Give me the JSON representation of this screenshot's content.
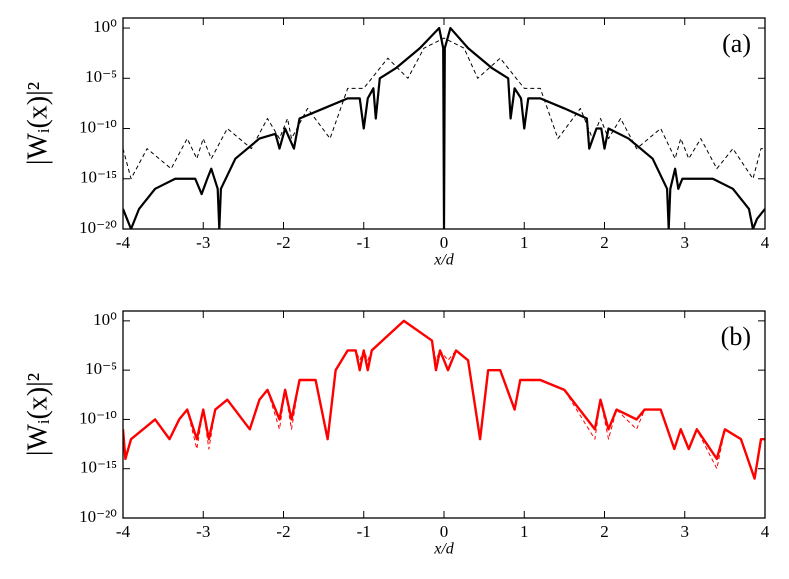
{
  "chart_data": [
    {
      "type": "line",
      "annotation": "(a)",
      "xlabel": "x/d",
      "ylabel": "|Wᵢ(x)|²",
      "ylog": true,
      "xlim": [
        -4,
        4
      ],
      "xticks": [
        -4,
        -3,
        -2,
        -1,
        0,
        1,
        2,
        3,
        4
      ],
      "ylim": [
        1e-20,
        10
      ],
      "yticks": [
        {
          "value": 1e-20,
          "label": "10⁻²⁰"
        },
        {
          "value": 1e-15,
          "label": "10⁻¹⁵"
        },
        {
          "value": 1e-10,
          "label": "10⁻¹⁰"
        },
        {
          "value": 1e-05,
          "label": "10⁻⁵"
        },
        {
          "value": 1,
          "label": "10⁰"
        }
      ],
      "series": [
        {
          "color": "#000000",
          "dash": false,
          "x": [
            -4,
            -3.95,
            -3.9,
            -3.8,
            -3.6,
            -3.35,
            -3.1,
            -3.02,
            -2.95,
            -2.9,
            -2.82,
            -2.8,
            -2.78,
            -2.6,
            -2.3,
            -2.1,
            -2.05,
            -1.98,
            -1.87,
            -1.8,
            -1.5,
            -1.2,
            -1.05,
            -1.0,
            -0.95,
            -0.88,
            -0.85,
            -0.8,
            -0.6,
            -0.3,
            -0.06,
            -0.01,
            0,
            0.01,
            0.08,
            0.3,
            0.6,
            0.8,
            0.83,
            0.88,
            0.96,
            1.0,
            1.05,
            1.2,
            1.5,
            1.78,
            1.81,
            1.9,
            1.96,
            2.0,
            2.05,
            2.3,
            2.6,
            2.78,
            2.8,
            2.82,
            2.88,
            2.92,
            2.97,
            3.1,
            3.35,
            3.6,
            3.8,
            3.85,
            3.9,
            4
          ],
          "values": [
            1e-18,
            1e-19,
            1e-20,
            1e-18,
            1e-16,
            1e-15,
            1e-15,
            3e-17,
            1e-15,
            1e-14,
            1e-16,
            1e-20,
            1e-16,
            1e-13,
            1e-11,
            3e-11,
            1e-12,
            1e-10,
            1e-12,
            1e-09,
            1e-08,
            1e-07,
            1e-07,
            1e-10,
            1e-07,
            1e-06,
            1e-09,
            1e-05,
            0.0001,
            0.01,
            1,
            0.01,
            1e-20,
            0.01,
            1,
            0.01,
            0.0001,
            1e-05,
            1e-09,
            1e-06,
            1e-07,
            1e-10,
            1e-07,
            1e-07,
            1e-08,
            1e-09,
            1e-12,
            1e-10,
            1e-10,
            1e-12,
            1e-10,
            1e-11,
            1e-13,
            1e-16,
            1e-20,
            1e-16,
            1e-14,
            1e-16,
            1e-15,
            1e-15,
            1e-15,
            1e-16,
            1e-18,
            1e-20,
            1e-19,
            1e-18
          ]
        },
        {
          "color": "#000000",
          "dash": true,
          "x": [
            -4,
            -3.9,
            -3.7,
            -3.4,
            -3.2,
            -3.08,
            -3.0,
            -2.9,
            -2.7,
            -2.4,
            -2.2,
            -2.05,
            -1.95,
            -1.9,
            -1.7,
            -1.42,
            -1.2,
            -1.0,
            -0.7,
            -0.45,
            -0.25,
            0,
            0.25,
            0.42,
            0.7,
            1.0,
            1.2,
            1.42,
            1.7,
            1.85,
            1.95,
            2.05,
            2.2,
            2.4,
            2.7,
            2.88,
            2.95,
            3.05,
            3.2,
            3.4,
            3.6,
            3.85,
            3.95,
            4
          ],
          "values": [
            1e-12,
            1e-15,
            1e-12,
            1e-14,
            1e-11,
            1e-13,
            1e-11,
            1e-13,
            1e-10,
            1e-12,
            1e-09,
            1e-11,
            1e-09,
            1e-11,
            1e-08,
            1e-11,
            1e-06,
            1e-06,
            0.001,
            1e-05,
            0.01,
            0.1,
            0.01,
            1e-05,
            0.001,
            1e-06,
            1e-06,
            1e-11,
            1e-08,
            1e-11,
            1e-09,
            1e-11,
            1e-09,
            1e-12,
            1e-10,
            1e-13,
            1e-11,
            1e-13,
            1e-11,
            1e-14,
            1e-12,
            1e-15,
            1e-12,
            1e-12
          ]
        }
      ]
    },
    {
      "type": "line",
      "annotation": "(b)",
      "xlabel": "x/d",
      "ylabel": "|Wᵢ(x)|²",
      "ylog": true,
      "xlim": [
        -4,
        4
      ],
      "xticks": [
        -4,
        -3,
        -2,
        -1,
        0,
        1,
        2,
        3,
        4
      ],
      "ylim": [
        1e-20,
        10
      ],
      "yticks": [
        {
          "value": 1e-20,
          "label": "10⁻²⁰"
        },
        {
          "value": 1e-15,
          "label": "10⁻¹⁵"
        },
        {
          "value": 1e-10,
          "label": "10⁻¹⁰"
        },
        {
          "value": 1e-05,
          "label": "10⁻⁵"
        },
        {
          "value": 1,
          "label": "10⁰"
        }
      ],
      "series": [
        {
          "color": "#ff0000",
          "dash": true,
          "x": [
            -4,
            -3.97,
            -3.9,
            -3.6,
            -3.42,
            -3.3,
            -3.2,
            -3.08,
            -3.0,
            -2.93,
            -2.85,
            -2.7,
            -2.42,
            -2.3,
            -2.2,
            -2.05,
            -1.98,
            -1.9,
            -1.8,
            -1.6,
            -1.45,
            -1.35,
            -1.2,
            -1.1,
            -1.05,
            -1.0,
            -0.95,
            -0.9,
            -0.5,
            -0.15,
            -0.1,
            -0.05,
            0.05,
            0.15,
            0.3,
            0.45,
            0.55,
            0.7,
            0.88,
            0.95,
            1.2,
            1.5,
            1.88,
            1.95,
            2.05,
            2.15,
            2.4,
            2.5,
            2.7,
            2.87,
            2.95,
            3.05,
            3.15,
            3.4,
            3.5,
            3.7,
            3.87,
            3.95,
            4
          ],
          "values": [
            1e-11,
            1e-14,
            1e-12,
            1e-10,
            1e-12,
            1e-10,
            1e-09,
            1e-13,
            1e-09,
            1e-13,
            1e-09,
            1e-08,
            1e-11,
            1e-08,
            1e-07,
            1e-11,
            1e-07,
            1e-11,
            1e-06,
            1e-06,
            1e-12,
            1e-05,
            0.001,
            0.001,
            0.0001,
            0.001,
            0.0001,
            0.001,
            1,
            0.01,
            0.0001,
            0.001,
            0.0001,
            0.001,
            0.0001,
            1e-12,
            1e-05,
            1e-05,
            1e-09,
            1e-06,
            1e-06,
            1e-07,
            1e-12,
            1e-08,
            1e-12,
            1e-09,
            1e-11,
            1e-09,
            1e-09,
            1e-13,
            1e-11,
            1e-13,
            1e-11,
            1e-15,
            1e-11,
            1e-12,
            1e-16,
            1e-12,
            1e-12
          ]
        },
        {
          "color": "#ff0000",
          "dash": false,
          "x": [
            -4,
            -3.97,
            -3.9,
            -3.6,
            -3.42,
            -3.3,
            -3.2,
            -3.08,
            -3.0,
            -2.93,
            -2.85,
            -2.7,
            -2.42,
            -2.3,
            -2.2,
            -2.05,
            -1.98,
            -1.9,
            -1.8,
            -1.6,
            -1.45,
            -1.35,
            -1.2,
            -1.1,
            -1.05,
            -1.0,
            -0.95,
            -0.9,
            -0.5,
            -0.15,
            -0.1,
            -0.05,
            0.05,
            0.15,
            0.3,
            0.45,
            0.55,
            0.7,
            0.88,
            0.95,
            1.2,
            1.5,
            1.88,
            1.95,
            2.05,
            2.15,
            2.4,
            2.5,
            2.7,
            2.87,
            2.95,
            3.05,
            3.15,
            3.4,
            3.5,
            3.7,
            3.87,
            3.95,
            4
          ],
          "values": [
            1e-11,
            1e-14,
            1e-12,
            1e-10,
            1e-12,
            1e-10,
            1e-09,
            1e-12,
            1e-09,
            1e-12,
            1e-09,
            1e-08,
            1e-11,
            1e-08,
            1e-07,
            1e-10,
            1e-07,
            1e-10,
            1e-06,
            1e-06,
            1e-12,
            1e-05,
            0.001,
            0.001,
            1e-05,
            0.001,
            1e-05,
            0.001,
            1,
            0.01,
            1e-05,
            0.001,
            1e-05,
            0.001,
            0.0001,
            1e-12,
            1e-05,
            1e-05,
            1e-09,
            1e-06,
            1e-06,
            1e-07,
            1e-11,
            1e-08,
            1e-11,
            1e-09,
            1e-10,
            1e-09,
            1e-09,
            1e-13,
            1e-11,
            1e-13,
            1e-11,
            1e-14,
            1e-11,
            1e-12,
            1e-16,
            1e-12,
            1e-12
          ]
        }
      ]
    }
  ]
}
